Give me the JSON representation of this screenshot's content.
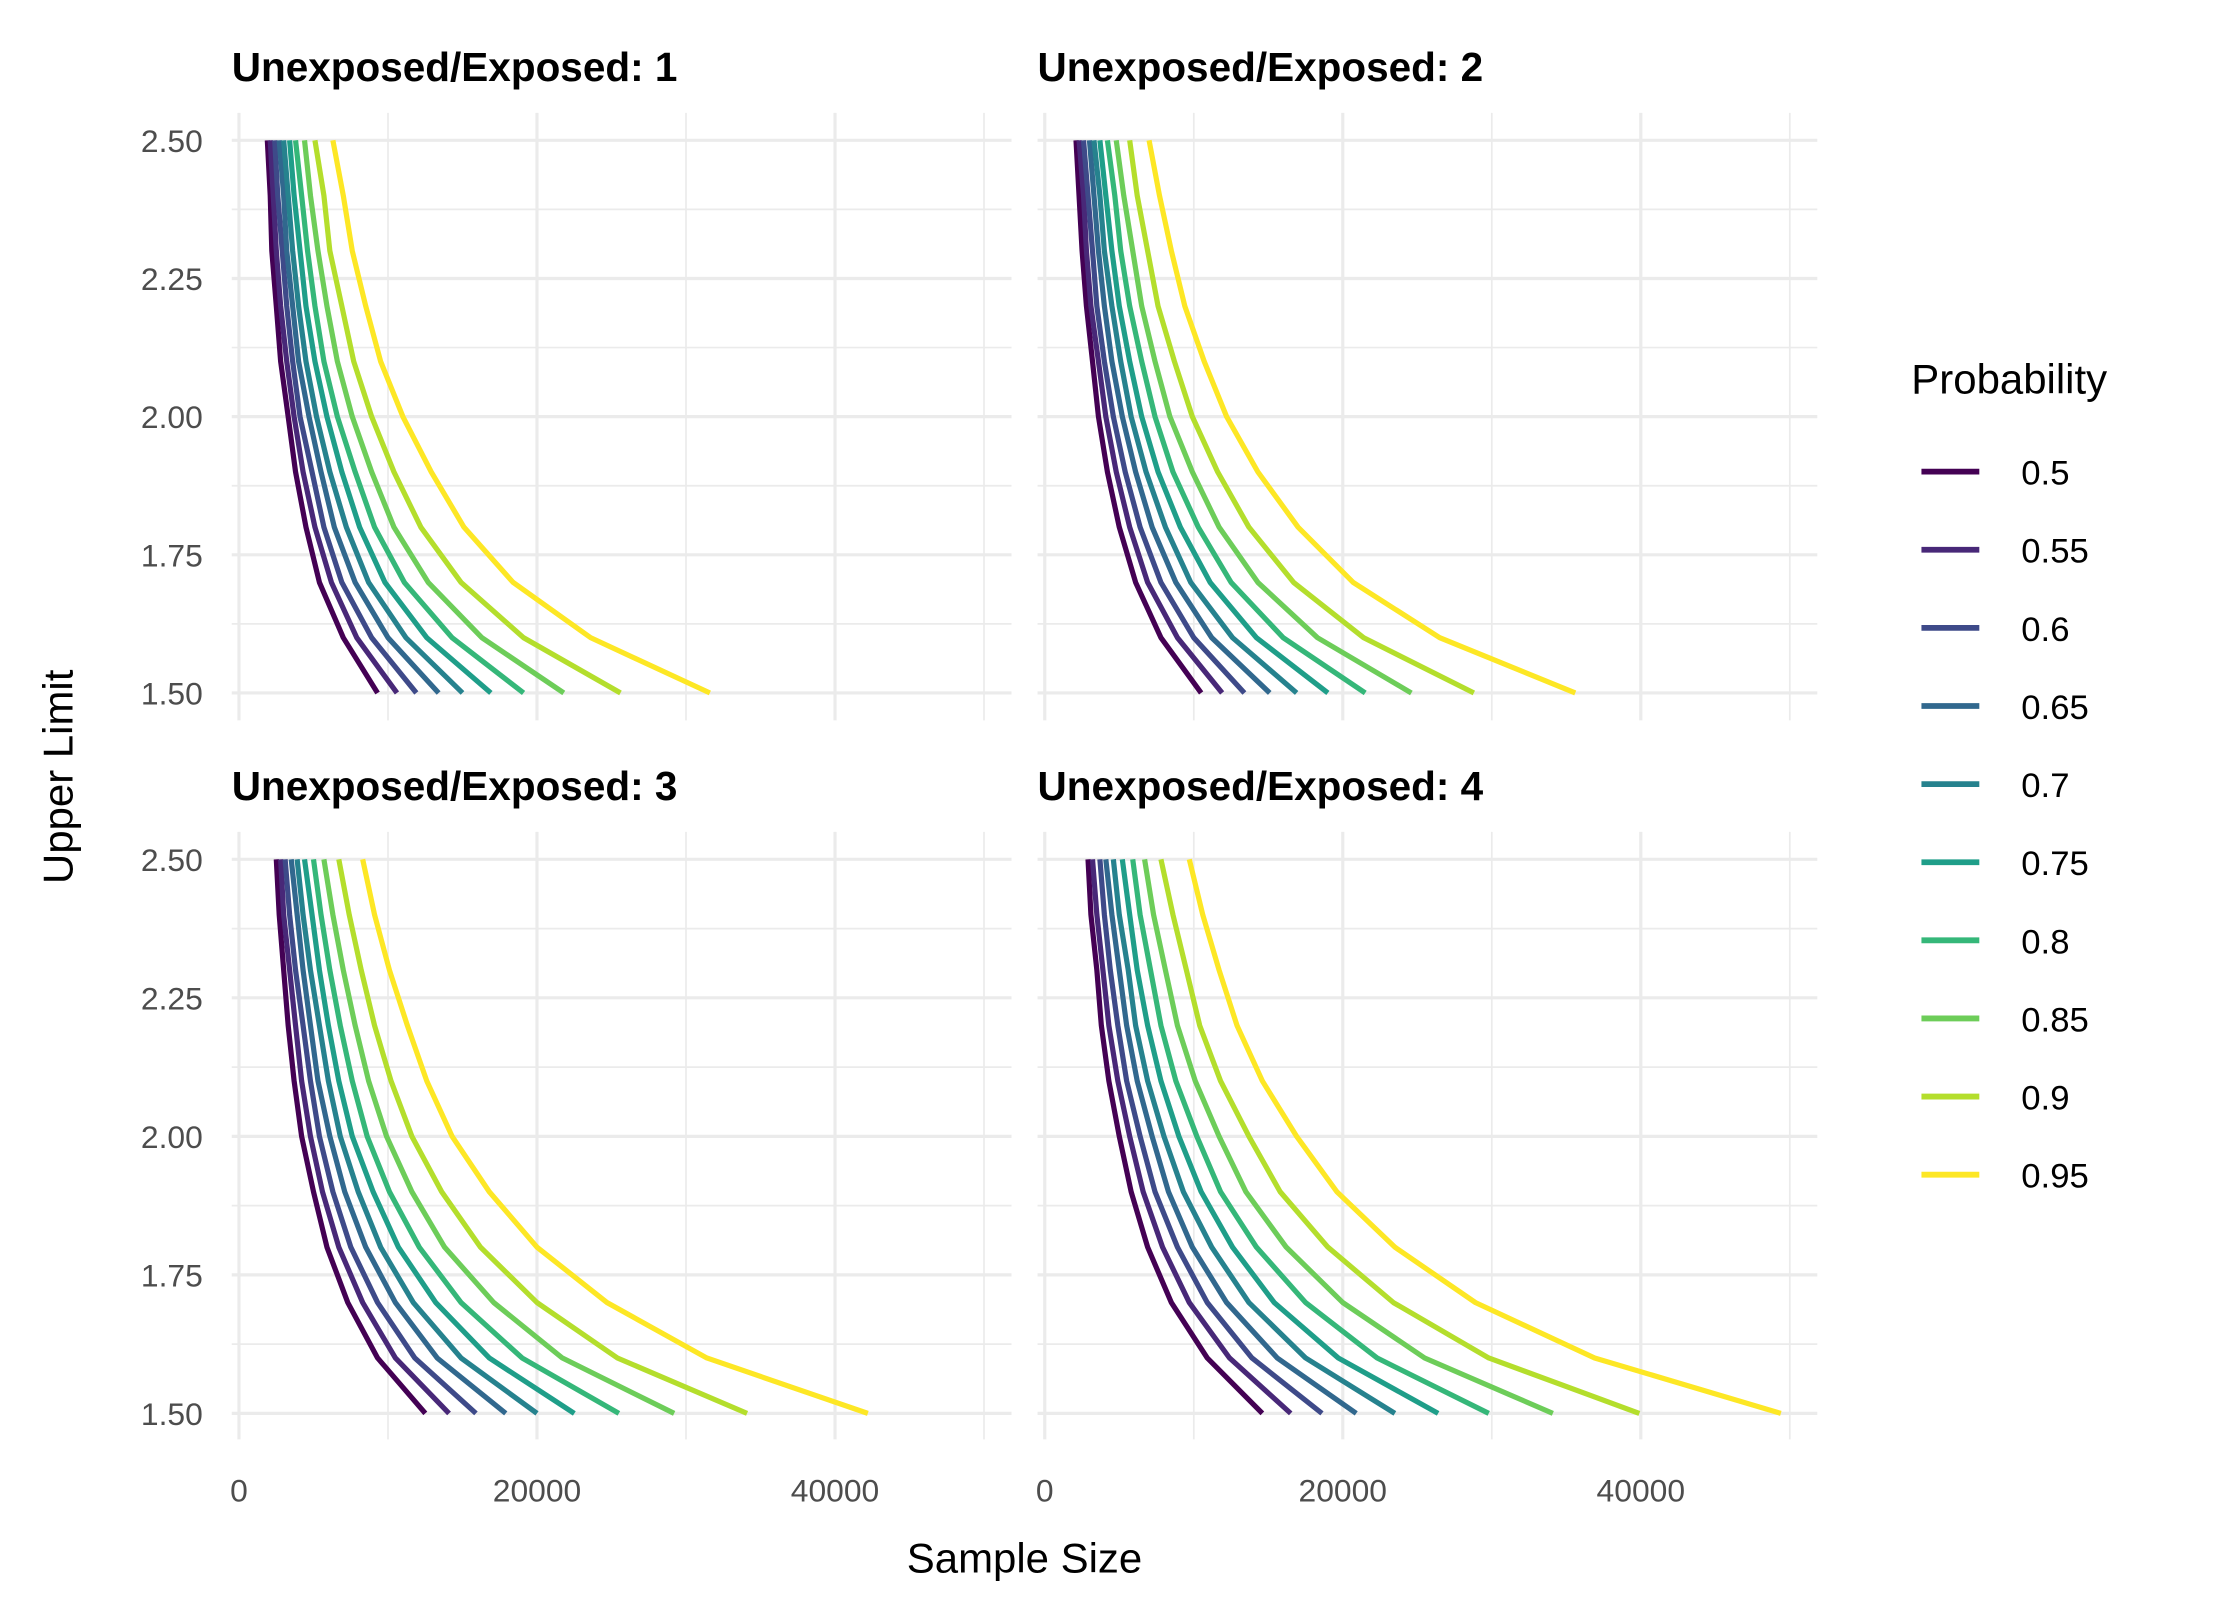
{
  "chart_data": {
    "type": "line",
    "xlabel": "Sample Size",
    "ylabel": "Upper Limit",
    "xlim": [
      0,
      50000
    ],
    "ylim": [
      1.5,
      2.5
    ],
    "x_ticks": [
      "0",
      "20000",
      "40000"
    ],
    "x_tick_values": [
      0,
      20000,
      40000
    ],
    "y_ticks": [
      "1.50",
      "1.75",
      "2.00",
      "2.25",
      "2.50"
    ],
    "y_tick_values": [
      1.5,
      1.75,
      2.0,
      2.25,
      2.5
    ],
    "grid": true,
    "legend": {
      "title": "Probability",
      "placement": "right"
    },
    "y": [
      1.5,
      1.6,
      1.7,
      1.8,
      1.9,
      2.0,
      2.1,
      2.2,
      2.3,
      2.4,
      2.5
    ],
    "series_names": [
      "0.5",
      "0.55",
      "0.6",
      "0.65",
      "0.7",
      "0.75",
      "0.8",
      "0.85",
      "0.9",
      "0.95"
    ],
    "colors": [
      "#440154",
      "#482878",
      "#3E4A89",
      "#31688E",
      "#26828E",
      "#1F9E89",
      "#35B779",
      "#6DCD59",
      "#B4DE2C",
      "#FDE725"
    ],
    "facets": [
      {
        "title": "Unexposed/Exposed: 1",
        "series": [
          {
            "name": "0.5",
            "x": [
              9300,
              7000,
              5400,
              4500,
              3800,
              3300,
              2800,
              2500,
              2200,
              2100,
              1900
            ]
          },
          {
            "name": "0.55",
            "x": [
              10600,
              7900,
              6200,
              5100,
              4300,
              3700,
              3200,
              2800,
              2500,
              2300,
              2100
            ]
          },
          {
            "name": "0.6",
            "x": [
              11900,
              8900,
              6900,
              5700,
              4900,
              4100,
              3600,
              3200,
              2900,
              2600,
              2400
            ]
          },
          {
            "name": "0.65",
            "x": [
              13400,
              10000,
              7800,
              6400,
              5500,
              4700,
              4000,
              3600,
              3200,
              3000,
              2700
            ]
          },
          {
            "name": "0.7",
            "x": [
              15000,
              11200,
              8700,
              7200,
              6100,
              5200,
              4500,
              4000,
              3600,
              3300,
              3000
            ]
          },
          {
            "name": "0.75",
            "x": [
              16900,
              12600,
              9800,
              8100,
              6900,
              5900,
              5100,
              4500,
              4100,
              3700,
              3400
            ]
          },
          {
            "name": "0.8",
            "x": [
              19100,
              14300,
              11100,
              9100,
              7800,
              6600,
              5700,
              5100,
              4600,
              4200,
              3800
            ]
          },
          {
            "name": "0.85",
            "x": [
              21800,
              16300,
              12700,
              10400,
              8900,
              7600,
              6600,
              5900,
              5300,
              4800,
              4400
            ]
          },
          {
            "name": "0.9",
            "x": [
              25600,
              19100,
              14900,
              12200,
              10400,
              8900,
              7700,
              6900,
              6100,
              5700,
              5100
            ]
          },
          {
            "name": "0.95",
            "x": [
              31600,
              23600,
              18400,
              15100,
              12900,
              11000,
              9500,
              8500,
              7600,
              7000,
              6300
            ]
          }
        ]
      },
      {
        "title": "Unexposed/Exposed: 2",
        "series": [
          {
            "name": "0.5",
            "x": [
              10500,
              7800,
              6100,
              5000,
              4200,
              3600,
              3200,
              2800,
              2500,
              2300,
              2100
            ]
          },
          {
            "name": "0.55",
            "x": [
              11900,
              8900,
              6900,
              5700,
              4800,
              4100,
              3600,
              3100,
              2800,
              2600,
              2300
            ]
          },
          {
            "name": "0.6",
            "x": [
              13400,
              10000,
              7800,
              6400,
              5400,
              4600,
              4000,
              3500,
              3200,
              2900,
              2600
            ]
          },
          {
            "name": "0.65",
            "x": [
              15100,
              11200,
              8800,
              7200,
              6100,
              5200,
              4500,
              4000,
              3600,
              3300,
              3000
            ]
          },
          {
            "name": "0.7",
            "x": [
              16900,
              12600,
              9800,
              8100,
              6800,
              5800,
              5100,
              4500,
              4000,
              3700,
              3300
            ]
          },
          {
            "name": "0.75",
            "x": [
              19000,
              14200,
              11100,
              9100,
              7600,
              6500,
              5700,
              5000,
              4500,
              4100,
              3700
            ]
          },
          {
            "name": "0.8",
            "x": [
              21500,
              16000,
              12500,
              10300,
              8600,
              7400,
              6500,
              5700,
              5100,
              4700,
              4200
            ]
          },
          {
            "name": "0.85",
            "x": [
              24600,
              18300,
              14300,
              11700,
              9900,
              8400,
              7400,
              6500,
              5900,
              5300,
              4800
            ]
          },
          {
            "name": "0.9",
            "x": [
              28800,
              21400,
              16700,
              13700,
              11600,
              9900,
              8700,
              7600,
              6900,
              6200,
              5700
            ]
          },
          {
            "name": "0.95",
            "x": [
              35600,
              26500,
              20700,
              17000,
              14300,
              12200,
              10700,
              9400,
              8500,
              7700,
              7000
            ]
          }
        ]
      },
      {
        "title": "Unexposed/Exposed: 3",
        "series": [
          {
            "name": "0.5",
            "x": [
              12500,
              9300,
              7300,
              5900,
              5000,
              4200,
              3700,
              3300,
              3000,
              2700,
              2500
            ]
          },
          {
            "name": "0.55",
            "x": [
              14100,
              10500,
              8300,
              6700,
              5600,
              4800,
              4200,
              3800,
              3400,
              3000,
              2800
            ]
          },
          {
            "name": "0.6",
            "x": [
              15900,
              11800,
              9300,
              7500,
              6300,
              5400,
              4800,
              4300,
              3800,
              3400,
              3100
            ]
          },
          {
            "name": "0.65",
            "x": [
              17900,
              13300,
              10500,
              8500,
              7100,
              6100,
              5300,
              4800,
              4300,
              3900,
              3500
            ]
          },
          {
            "name": "0.7",
            "x": [
              20000,
              14900,
              11700,
              9500,
              8000,
              6800,
              6000,
              5400,
              4800,
              4300,
              3900
            ]
          },
          {
            "name": "0.75",
            "x": [
              22500,
              16800,
              13200,
              10700,
              9000,
              7600,
              6700,
              6000,
              5400,
              4900,
              4400
            ]
          },
          {
            "name": "0.8",
            "x": [
              25500,
              19000,
              14900,
              12100,
              10100,
              8600,
              7600,
              6800,
              6100,
              5500,
              5000
            ]
          },
          {
            "name": "0.85",
            "x": [
              29200,
              21700,
              17100,
              13800,
              11600,
              9900,
              8700,
              7800,
              7000,
              6300,
              5700
            ]
          },
          {
            "name": "0.9",
            "x": [
              34100,
              25400,
              20000,
              16200,
              13600,
              11600,
              10200,
              9100,
              8200,
              7400,
              6700
            ]
          },
          {
            "name": "0.95",
            "x": [
              42200,
              31400,
              24700,
              20000,
              16800,
              14300,
              12600,
              11300,
              10100,
              9100,
              8300
            ]
          }
        ]
      },
      {
        "title": "Unexposed/Exposed: 4",
        "series": [
          {
            "name": "0.5",
            "x": [
              14600,
              10900,
              8500,
              6900,
              5800,
              5000,
              4300,
              3800,
              3500,
              3100,
              2900
            ]
          },
          {
            "name": "0.55",
            "x": [
              16500,
              12400,
              9700,
              7900,
              6600,
              5700,
              4900,
              4300,
              3900,
              3500,
              3200
            ]
          },
          {
            "name": "0.6",
            "x": [
              18600,
              13900,
              10900,
              8900,
              7400,
              6400,
              5500,
              4900,
              4400,
              4000,
              3700
            ]
          },
          {
            "name": "0.65",
            "x": [
              20900,
              15600,
              12200,
              9900,
              8300,
              7200,
              6200,
              5500,
              5000,
              4500,
              4100
            ]
          },
          {
            "name": "0.7",
            "x": [
              23500,
              17500,
              13700,
              11200,
              9300,
              8000,
              6900,
              6100,
              5600,
              5000,
              4600
            ]
          },
          {
            "name": "0.75",
            "x": [
              26400,
              19700,
              15400,
              12600,
              10500,
              9000,
              7800,
              6900,
              6200,
              5700,
              5200
            ]
          },
          {
            "name": "0.8",
            "x": [
              29800,
              22300,
              17500,
              14200,
              11800,
              10200,
              8800,
              7800,
              7100,
              6400,
              5900
            ]
          },
          {
            "name": "0.85",
            "x": [
              34100,
              25500,
              20000,
              16200,
              13500,
              11700,
              10100,
              8900,
              8100,
              7300,
              6700
            ]
          },
          {
            "name": "0.9",
            "x": [
              39900,
              29800,
              23400,
              19000,
              15800,
              13700,
              11800,
              10400,
              9500,
              8600,
              7800
            ]
          },
          {
            "name": "0.95",
            "x": [
              49400,
              36900,
              28900,
              23500,
              19600,
              16900,
              14600,
              12900,
              11700,
              10600,
              9700
            ]
          }
        ]
      }
    ]
  }
}
